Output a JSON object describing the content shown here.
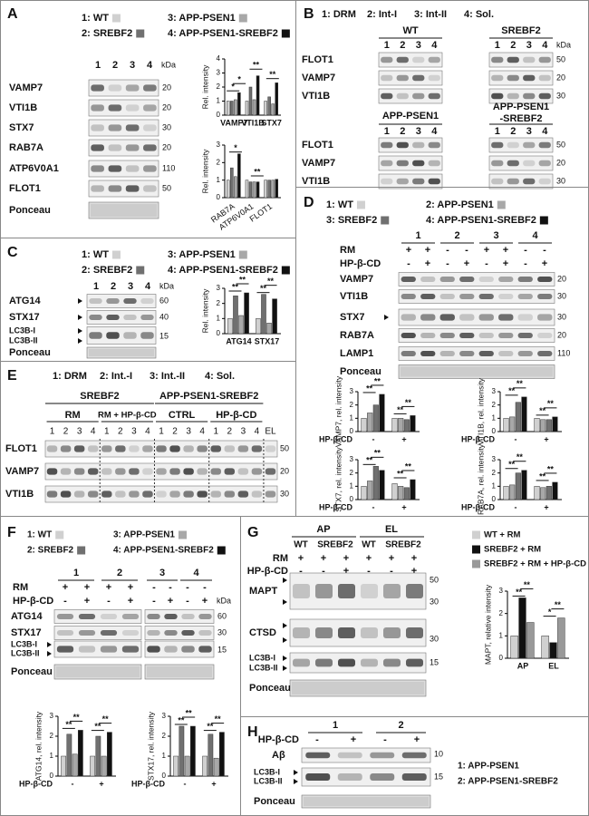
{
  "panels": {
    "A": {
      "letter": "A",
      "legend": [
        {
          "label": "1: WT",
          "color": "#d0d0d0"
        },
        {
          "label": "2: SREBF2",
          "color": "#707070"
        },
        {
          "label": "3: APP-PSEN1",
          "color": "#a8a8a8"
        },
        {
          "label": "4: APP-PSEN1-SREBF2",
          "color": "#111111"
        }
      ],
      "lanes": [
        "1",
        "2",
        "3",
        "4"
      ],
      "kda": "kDa",
      "rows": [
        "VAMP7",
        "VTI1B",
        "STX7",
        "RAB7A",
        "ATP6V0A1",
        "FLOT1",
        "Ponceau"
      ],
      "markers": [
        "20",
        "20",
        "30",
        "20",
        "110",
        "50"
      ],
      "charts": [
        {
          "y_label": "Rel. intensity",
          "categories": [
            "VAMP7",
            "VTI1B",
            "STX7"
          ],
          "ylim": [
            0,
            4
          ],
          "yticks": [
            0,
            1,
            2,
            3,
            4
          ],
          "series": [
            {
              "color": "#d0d0d0",
              "values": [
                1,
                1,
                1
              ]
            },
            {
              "color": "#707070",
              "values": [
                1,
                2,
                1.3
              ]
            },
            {
              "color": "#a8a8a8",
              "values": [
                1.1,
                1.1,
                0.8
              ]
            },
            {
              "color": "#111111",
              "values": [
                1.6,
                2.8,
                2.3
              ]
            }
          ],
          "significance": [
            "*",
            "*",
            "**",
            "**"
          ]
        },
        {
          "y_label": "Rel. intensity",
          "categories": [
            "RAB7A",
            "ATP6V0A1",
            "FLOT1"
          ],
          "ylim": [
            0,
            3
          ],
          "yticks": [
            0,
            1,
            2,
            3
          ],
          "series": [
            {
              "color": "#d0d0d0",
              "values": [
                1,
                1,
                1
              ]
            },
            {
              "color": "#707070",
              "values": [
                1.7,
                0.9,
                1
              ]
            },
            {
              "color": "#a8a8a8",
              "values": [
                1.2,
                0.9,
                1
              ]
            },
            {
              "color": "#111111",
              "values": [
                2.5,
                0.9,
                1.05
              ]
            }
          ],
          "significance": [
            "*",
            "**"
          ]
        }
      ]
    },
    "B": {
      "letter": "B",
      "legend": [
        "1: DRM",
        "2: Int-I",
        "3: Int-II",
        "4: Sol."
      ],
      "groups": [
        [
          "WT"
        ],
        [
          "SREBF2"
        ],
        [
          "APP-PSEN1"
        ],
        [
          "APP-PSEN1",
          "-SREBF2"
        ]
      ],
      "lanes": [
        "1",
        "2",
        "3",
        "4"
      ],
      "kda": "kDa",
      "rows": [
        "FLOT1",
        "VAMP7",
        "VTI1B"
      ],
      "markers": [
        "50",
        "20",
        "30"
      ]
    },
    "C": {
      "letter": "C",
      "legend": [
        {
          "label": "1: WT",
          "color": "#d0d0d0"
        },
        {
          "label": "2: SREBF2",
          "color": "#707070"
        },
        {
          "label": "3: APP-PSEN1",
          "color": "#a8a8a8"
        },
        {
          "label": "4: APP-PSEN1-SREBF2",
          "color": "#111111"
        }
      ],
      "lanes": [
        "1",
        "2",
        "3",
        "4"
      ],
      "kda": "kDa",
      "rows": [
        "ATG14",
        "STX17",
        "LC3B-I",
        "LC3B-II",
        "Ponceau"
      ],
      "markers": [
        "60",
        "40",
        "15"
      ],
      "chart": {
        "y_label": "Rel. intensity",
        "categories": [
          "ATG14",
          "STX17"
        ],
        "ylim": [
          0,
          3
        ],
        "yticks": [
          0,
          1,
          2,
          3
        ],
        "series": [
          {
            "color": "#d0d0d0",
            "values": [
              1,
              1
            ]
          },
          {
            "color": "#707070",
            "values": [
              2.5,
              2.6
            ]
          },
          {
            "color": "#a8a8a8",
            "values": [
              1.2,
              0.7
            ]
          },
          {
            "color": "#111111",
            "values": [
              2.7,
              2.3
            ]
          }
        ],
        "significance": [
          "**",
          "**",
          "**",
          "**"
        ]
      }
    },
    "D": {
      "letter": "D",
      "legend": [
        {
          "label": "1: WT",
          "color": "#d0d0d0"
        },
        {
          "label": "2: APP-PSEN1",
          "color": "#a8a8a8"
        },
        {
          "label": "3: SREBF2",
          "color": "#707070"
        },
        {
          "label": "4: APP-PSEN1-SREBF2",
          "color": "#111111"
        }
      ],
      "groups": [
        "1",
        "2",
        "3",
        "4"
      ],
      "treatments": [
        {
          "label": "RM",
          "signs": [
            "+",
            "+",
            "-",
            "-",
            "+",
            "+",
            "-",
            "-"
          ]
        },
        {
          "label": "HP-β-CD",
          "signs": [
            "-",
            "+",
            "-",
            "+",
            "-",
            "+",
            "-",
            "+"
          ]
        }
      ],
      "rows": [
        "VAMP7",
        "VTI1B",
        "STX7",
        "RAB7A",
        "LAMP1",
        "Ponceau"
      ],
      "markers": [
        "20",
        "30",
        "30",
        "20",
        "110"
      ],
      "charts": [
        {
          "y_label": "VAMP7, rel. intensity",
          "x_label": "HP-β-CD",
          "categories": [
            "-",
            "+"
          ],
          "ylim": [
            0,
            3
          ],
          "yticks": [
            0,
            1,
            2,
            3
          ],
          "series": [
            {
              "color": "#d0d0d0",
              "values": [
                1,
                1
              ]
            },
            {
              "color": "#a8a8a8",
              "values": [
                1.4,
                1.0
              ]
            },
            {
              "color": "#707070",
              "values": [
                2.0,
                0.9
              ]
            },
            {
              "color": "#111111",
              "values": [
                2.8,
                1.2
              ]
            }
          ],
          "significance": [
            "**",
            "**",
            "**",
            "**"
          ]
        },
        {
          "y_label": "VTI1B, rel. intensity",
          "x_label": "HP-β-CD",
          "categories": [
            "-",
            "+"
          ],
          "ylim": [
            0,
            3
          ],
          "yticks": [
            0,
            1,
            2,
            3
          ],
          "series": [
            {
              "color": "#d0d0d0",
              "values": [
                1,
                1
              ]
            },
            {
              "color": "#a8a8a8",
              "values": [
                1.1,
                0.9
              ]
            },
            {
              "color": "#707070",
              "values": [
                2.2,
                0.9
              ]
            },
            {
              "color": "#111111",
              "values": [
                2.6,
                1.1
              ]
            }
          ],
          "significance": [
            "**",
            "**",
            "**",
            "**"
          ]
        },
        {
          "y_label": "STX7, rel. intensity",
          "x_label": "HP-β-CD",
          "categories": [
            "-",
            "+"
          ],
          "ylim": [
            0,
            3
          ],
          "yticks": [
            0,
            1,
            2,
            3
          ],
          "series": [
            {
              "color": "#d0d0d0",
              "values": [
                1,
                1.2
              ]
            },
            {
              "color": "#a8a8a8",
              "values": [
                1.4,
                1.0
              ]
            },
            {
              "color": "#707070",
              "values": [
                2.5,
                0.9
              ]
            },
            {
              "color": "#111111",
              "values": [
                2.2,
                1.5
              ]
            }
          ],
          "significance": [
            "**",
            "**",
            "**",
            "**"
          ]
        },
        {
          "y_label": "RAB7A, rel. intensity",
          "x_label": "HP-β-CD",
          "categories": [
            "-",
            "+"
          ],
          "ylim": [
            0,
            3
          ],
          "yticks": [
            0,
            1,
            2,
            3
          ],
          "series": [
            {
              "color": "#d0d0d0",
              "values": [
                1,
                1
              ]
            },
            {
              "color": "#a8a8a8",
              "values": [
                1.1,
                0.9
              ]
            },
            {
              "color": "#707070",
              "values": [
                2.0,
                1.0
              ]
            },
            {
              "color": "#111111",
              "values": [
                2.2,
                1.3
              ]
            }
          ],
          "significance": [
            "**",
            "**",
            "**",
            "**"
          ]
        }
      ]
    },
    "E": {
      "letter": "E",
      "legend": [
        "1: DRM",
        "2: Int.-I",
        "3: Int.-II",
        "4: Sol."
      ],
      "headers": [
        "SREBF2",
        "APP-PSEN1-SREBF2"
      ],
      "conditions": [
        "RM",
        "RM + HP-β-CD",
        "CTRL",
        "HP-β-CD"
      ],
      "lanes": [
        "1",
        "2",
        "3",
        "4"
      ],
      "el": "EL",
      "rows": [
        "FLOT1",
        "VAMP7",
        "VTI1B"
      ],
      "markers": [
        "50",
        "20",
        "30"
      ]
    },
    "F": {
      "letter": "F",
      "legend": [
        {
          "label": "1: WT",
          "color": "#d0d0d0"
        },
        {
          "label": "2: SREBF2",
          "color": "#707070"
        },
        {
          "label": "3: APP-PSEN1",
          "color": "#a8a8a8"
        },
        {
          "label": "4: APP-PSEN1-SREBF2",
          "color": "#111111"
        }
      ],
      "groups": [
        "1",
        "2",
        "3",
        "4"
      ],
      "kda": "kDa",
      "treatments": [
        {
          "label": "RM",
          "signs": [
            "+",
            "+",
            "+",
            "+",
            "-",
            "-",
            "-",
            "-"
          ]
        },
        {
          "label": "HP-β-CD",
          "signs": [
            "-",
            "+",
            "-",
            "+",
            "-",
            "+",
            "-",
            "+"
          ]
        }
      ],
      "rows": [
        "ATG14",
        "STX17",
        "LC3B-I",
        "LC3B-II",
        "Ponceau"
      ],
      "markers": [
        "60",
        "30",
        "15"
      ],
      "charts": [
        {
          "y_label": "ATG14, rel. intensity",
          "x_label": "HP-β-CD",
          "categories": [
            "-",
            "+"
          ],
          "ylim": [
            0,
            3
          ],
          "yticks": [
            0,
            1,
            2,
            3
          ],
          "series": [
            {
              "color": "#d0d0d0",
              "values": [
                1,
                1
              ]
            },
            {
              "color": "#707070",
              "values": [
                2.1,
                2.0
              ]
            },
            {
              "color": "#a8a8a8",
              "values": [
                1.1,
                1.0
              ]
            },
            {
              "color": "#111111",
              "values": [
                2.3,
                2.2
              ]
            }
          ],
          "significance": [
            "**",
            "**",
            "**",
            "**"
          ]
        },
        {
          "y_label": "STX17, rel. intensity",
          "x_label": "HP-β-CD",
          "categories": [
            "-",
            "+"
          ],
          "ylim": [
            0,
            3
          ],
          "yticks": [
            0,
            1,
            2,
            3
          ],
          "series": [
            {
              "color": "#d0d0d0",
              "values": [
                1,
                1
              ]
            },
            {
              "color": "#707070",
              "values": [
                2.5,
                2.1
              ]
            },
            {
              "color": "#a8a8a8",
              "values": [
                1.0,
                0.9
              ]
            },
            {
              "color": "#111111",
              "values": [
                2.5,
                2.2
              ]
            }
          ],
          "significance": [
            "**",
            "**",
            "**",
            "**"
          ]
        }
      ]
    },
    "G": {
      "letter": "G",
      "conditions": [
        "AP",
        "EL"
      ],
      "genotypes": [
        "WT",
        "SREBF2",
        "WT",
        "SREBF2"
      ],
      "treatments": [
        {
          "label": "RM",
          "signs": [
            "+",
            "+",
            "+",
            "+",
            "+",
            "+"
          ]
        },
        {
          "label": "HP-β-CD",
          "signs": [
            "-",
            "-",
            "+",
            "-",
            "-",
            "+"
          ]
        }
      ],
      "rows": [
        "MAPT",
        "CTSD",
        "LC3B-I",
        "LC3B-II",
        "Ponceau"
      ],
      "markers": [
        "50",
        "30",
        "30",
        "15"
      ],
      "legend": [
        {
          "label": "WT + RM",
          "color": "#d0d0d0"
        },
        {
          "label": "SREBF2 + RM",
          "color": "#111111"
        },
        {
          "label": "SREBF2 + RM + HP-β-CD",
          "color": "#999999"
        }
      ],
      "chart": {
        "y_label": "MAPT, relative intensity",
        "categories": [
          "AP",
          "EL"
        ],
        "ylim": [
          0,
          3
        ],
        "yticks": [
          0,
          1,
          2,
          3
        ],
        "series": [
          {
            "color": "#d0d0d0",
            "values": [
              1,
              1
            ]
          },
          {
            "color": "#111111",
            "values": [
              2.7,
              0.7
            ]
          },
          {
            "color": "#999999",
            "values": [
              1.6,
              1.8
            ]
          }
        ],
        "significance": [
          "**",
          "**",
          "*",
          "**"
        ]
      }
    },
    "H": {
      "letter": "H",
      "groups": [
        "1",
        "2"
      ],
      "treatments": [
        {
          "label": "HP-β-CD",
          "signs": [
            "-",
            "+",
            "-",
            "+"
          ]
        }
      ],
      "rows": [
        "Aβ",
        "LC3B-I",
        "LC3B-II",
        "Ponceau"
      ],
      "markers": [
        "10",
        "15"
      ],
      "legend": [
        "1: APP-PSEN1",
        "2: APP-PSEN1-SREBF2"
      ]
    }
  }
}
